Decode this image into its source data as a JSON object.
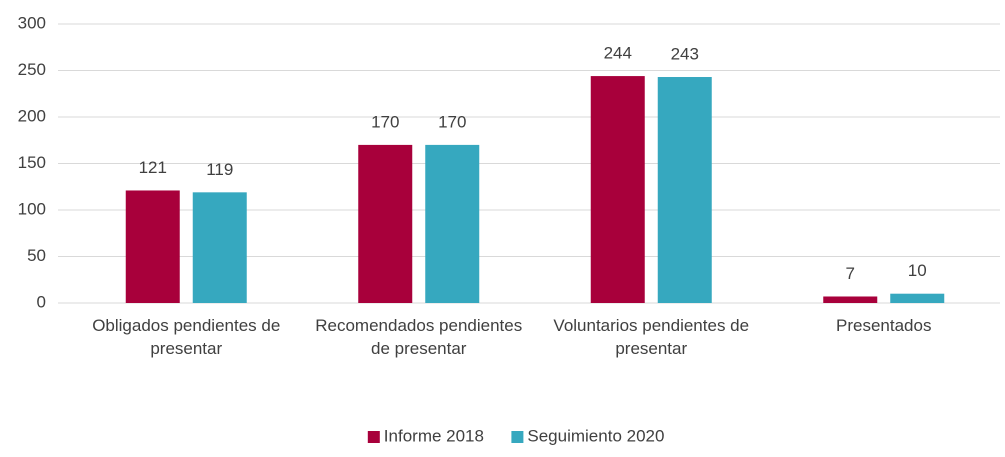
{
  "chart_data": {
    "type": "bar",
    "categories": [
      "Obligados pendientes de presentar",
      "Recomendados pendientes de presentar",
      "Voluntarios pendientes de presentar",
      "Presentados"
    ],
    "series": [
      {
        "name": "Informe 2018",
        "color": "#a8003b",
        "values": [
          121,
          170,
          244,
          7
        ]
      },
      {
        "name": "Seguimiento 2020",
        "color": "#36a8bf",
        "values": [
          119,
          170,
          243,
          10
        ]
      }
    ],
    "ylim": [
      0,
      300
    ],
    "yticks": [
      0,
      50,
      100,
      150,
      200,
      250,
      300
    ],
    "grid": true,
    "legend": "bottom"
  }
}
